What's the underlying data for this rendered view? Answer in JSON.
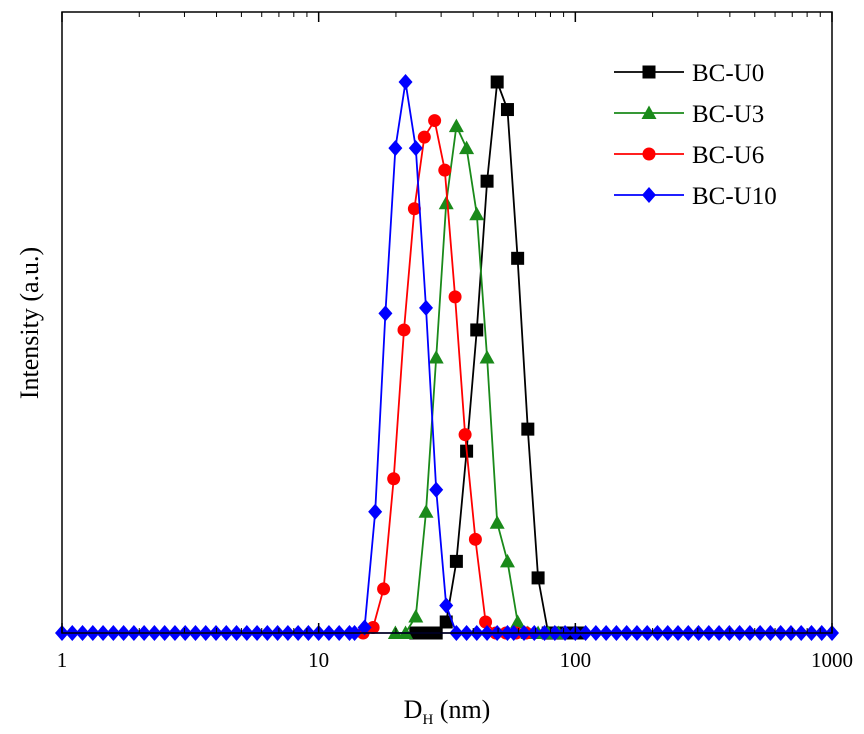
{
  "chart_data": {
    "type": "line",
    "xscale": "log",
    "xlim": [
      1,
      1000
    ],
    "ylim": [
      0,
      1.08
    ],
    "xlabel": "D",
    "xlabel_sub": "H",
    "xlabel_unit": "(nm)",
    "ylabel": "Intensity (a.u.)",
    "x_ticks": [
      "1",
      "10",
      "100",
      "1000"
    ],
    "y_ticks_visible": false,
    "grid": false,
    "legend_position": "top-right",
    "series": [
      {
        "name": "BC-U0",
        "color": "#000000",
        "marker": "square",
        "x": [
          23.9,
          26.2,
          28.7,
          31.4,
          34.4,
          37.7,
          41.3,
          45.3,
          49.6,
          54.4,
          59.6,
          65.3,
          71.6,
          78.4,
          86.0,
          94.2,
          103.2
        ],
        "y": [
          0,
          0,
          0,
          0.02,
          0.13,
          0.33,
          0.55,
          0.82,
          1.0,
          0.95,
          0.68,
          0.37,
          0.1,
          0,
          0,
          0,
          0
        ]
      },
      {
        "name": "BC-U3",
        "color": "#1a8a1a",
        "marker": "triangle",
        "x": [
          19.9,
          21.8,
          23.9,
          26.2,
          28.7,
          31.4,
          34.4,
          37.7,
          41.3,
          45.3,
          49.6,
          54.4,
          59.6,
          65.3,
          71.6,
          78.4,
          86.0
        ],
        "y": [
          0,
          0,
          0.03,
          0.22,
          0.5,
          0.78,
          0.92,
          0.88,
          0.76,
          0.5,
          0.2,
          0.13,
          0.02,
          0,
          0,
          0,
          0
        ]
      },
      {
        "name": "BC-U6",
        "color": "#ff0000",
        "marker": "circle",
        "x": [
          14.9,
          16.3,
          17.9,
          19.6,
          21.5,
          23.6,
          25.8,
          28.3,
          31.0,
          34.0,
          37.2,
          40.8,
          44.7,
          49.0,
          53.7,
          58.8,
          64.4
        ],
        "y": [
          0,
          0.01,
          0.08,
          0.28,
          0.55,
          0.77,
          0.9,
          0.93,
          0.84,
          0.61,
          0.36,
          0.17,
          0.02,
          0,
          0,
          0,
          0
        ]
      },
      {
        "name": "BC-U10",
        "color": "#0000ff",
        "marker": "diamond",
        "x": [
          13.8,
          15.1,
          16.6,
          18.2,
          19.9,
          21.8,
          23.9,
          26.2,
          28.7,
          31.4,
          34.4,
          37.7,
          41.3,
          45.3,
          49.6,
          54.4
        ],
        "y": [
          0,
          0.01,
          0.22,
          0.58,
          0.88,
          1.0,
          0.88,
          0.59,
          0.26,
          0.05,
          0,
          0,
          0,
          0,
          0,
          0
        ],
        "baseline_markers": true
      }
    ]
  }
}
